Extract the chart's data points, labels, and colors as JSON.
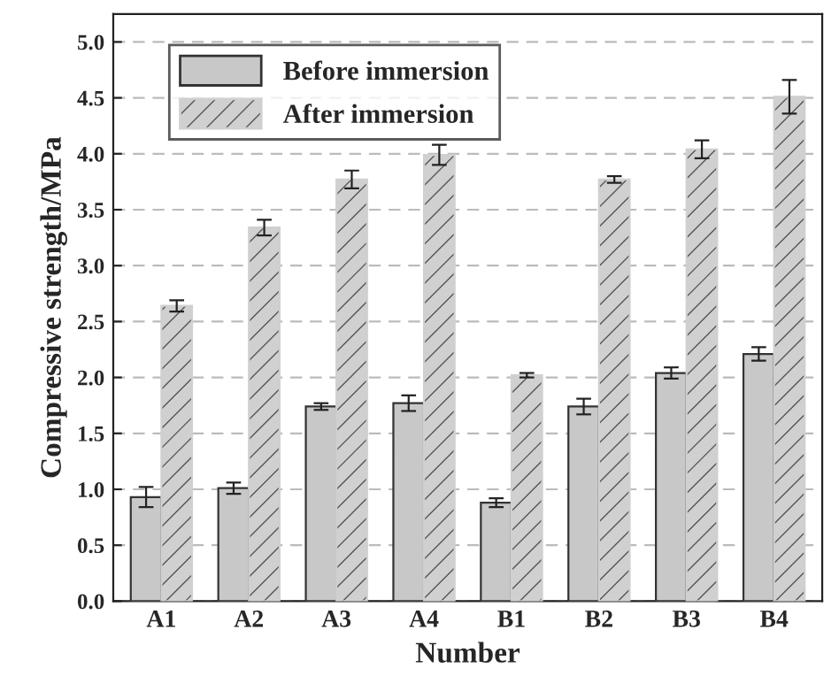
{
  "chart_data": {
    "type": "bar",
    "xlabel": "Number",
    "ylabel": "Compressive strength/MPa",
    "categories": [
      "A1",
      "A2",
      "A3",
      "A4",
      "B1",
      "B2",
      "B3",
      "B4"
    ],
    "series": [
      {
        "name": "Before immersion",
        "color": "#c8c8c8",
        "values": [
          0.93,
          1.01,
          1.74,
          1.77,
          0.88,
          1.74,
          2.04,
          2.21
        ],
        "errors": [
          0.09,
          0.05,
          0.03,
          0.07,
          0.04,
          0.07,
          0.05,
          0.06
        ]
      },
      {
        "name": "After immersion",
        "color": "#d0d0d0",
        "values": [
          2.64,
          3.34,
          3.77,
          3.99,
          2.02,
          3.77,
          4.04,
          4.51
        ],
        "errors": [
          0.05,
          0.07,
          0.08,
          0.09,
          0.02,
          0.03,
          0.08,
          0.15
        ]
      }
    ],
    "ylim": [
      0,
      5.25
    ],
    "yticks": [
      {
        "value": 0,
        "label": "0.0"
      },
      0.5,
      {
        "value": 1,
        "label": "1.0"
      },
      1.5,
      {
        "value": 2,
        "label": "2.0"
      },
      2.5,
      {
        "value": 3,
        "label": "3.0"
      },
      3.5,
      {
        "value": 4,
        "label": "4.0"
      },
      4.5,
      {
        "value": 5,
        "label": "5.0"
      }
    ],
    "grid": "y",
    "legend": "top left"
  }
}
